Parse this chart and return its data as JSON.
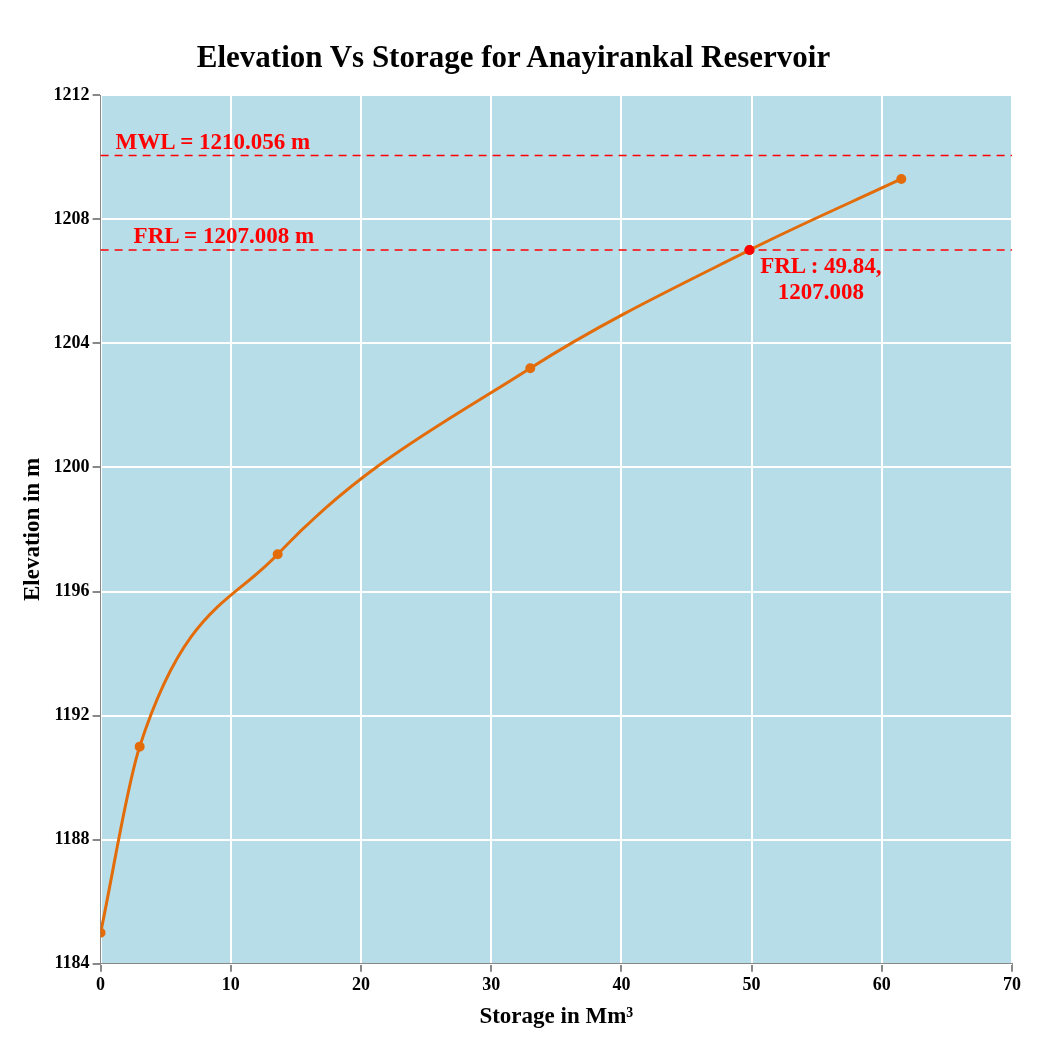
{
  "chart_data": {
    "type": "line",
    "title": "Elevation Vs Storage for Anayirankal Reservoir",
    "xlabel": "Storage in Mm³",
    "ylabel": "Elevation in m",
    "series": [
      {
        "color": "#e36c0a",
        "x": [
          0,
          3.0,
          13.6,
          33.0,
          49.84,
          61.5
        ],
        "values": [
          1185.0,
          1191.0,
          1197.2,
          1203.2,
          1207.008,
          1209.3
        ]
      }
    ],
    "xlim": [
      0,
      70
    ],
    "xticks": [
      0,
      10,
      20,
      30,
      40,
      50,
      60,
      70
    ],
    "ylim": [
      1184,
      1212
    ],
    "yticks": [
      1184,
      1188,
      1192,
      1196,
      1200,
      1204,
      1208,
      1212
    ],
    "ref_lines": [
      {
        "axis": "y",
        "value": 1210.056,
        "label": "MWL = 1210.056 m",
        "color": "#ff0000",
        "line_style": "dashed"
      },
      {
        "axis": "y",
        "value": 1207.008,
        "label": "FRL = 1207.008 m",
        "color": "#ff0000",
        "line_style": "dashed"
      }
    ],
    "annotations": [
      {
        "text": "FRL : 49.84, 1207.008",
        "x": 49.84,
        "y": 1207.008
      }
    ],
    "grid": true,
    "legend": false,
    "marker": "circle",
    "line_style": "solid"
  }
}
